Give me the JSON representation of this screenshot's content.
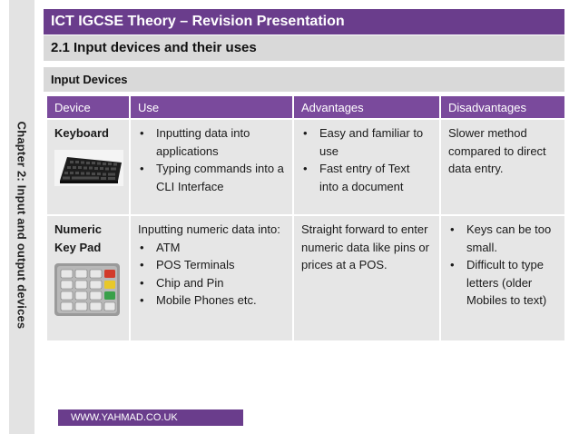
{
  "side_label": "Chapter 2: Input and output devices",
  "header": {
    "title": "ICT IGCSE Theory – Revision Presentation",
    "subtitle": "2.1 Input devices and their uses",
    "section": "Input Devices"
  },
  "table": {
    "headers": [
      "Device",
      "Use",
      "Advantages",
      "Disadvantages"
    ],
    "rows": [
      {
        "device": "Keyboard",
        "use": [
          "Inputting data into applications",
          "Typing commands into a CLI Interface"
        ],
        "advantages": [
          "Easy and familiar  to use",
          "Fast entry of Text into a document"
        ],
        "disadvantages": "Slower method compared to direct data entry."
      },
      {
        "device": "Numeric Key Pad",
        "use_intro": "Inputting numeric data into:",
        "use": [
          "ATM",
          "POS Terminals",
          "Chip and Pin",
          "Mobile Phones etc."
        ],
        "advantages": "Straight forward to enter numeric data like pins or prices at a POS.",
        "disadvantages": [
          "Keys can be too small.",
          "Difficult to type letters (older Mobiles to text)"
        ]
      }
    ]
  },
  "footer": "WWW.YAHMAD.CO.UK"
}
